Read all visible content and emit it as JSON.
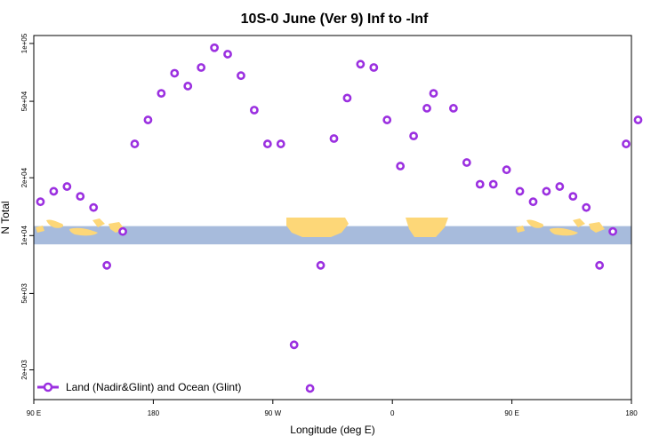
{
  "chart_data": {
    "type": "scatter",
    "title": "10S-0 June (Ver 9)   Inf to -Inf",
    "xlabel": "Longitude (deg E)",
    "ylabel": "N Total",
    "y_scale": "log",
    "ylim": [
      1400,
      110000
    ],
    "x_ticks": [
      {
        "label": "90 E",
        "pos": 0
      },
      {
        "label": "180",
        "pos": 90
      },
      {
        "label": "90 W",
        "pos": 180
      },
      {
        "label": "0",
        "pos": 270
      },
      {
        "label": "90 E",
        "pos": 360
      },
      {
        "label": "180",
        "pos": 450
      }
    ],
    "x_range": [
      0,
      450
    ],
    "y_ticks": [
      {
        "label": "1e+05",
        "value": 100000
      },
      {
        "label": "5e+04",
        "value": 50000
      },
      {
        "label": "2e+04",
        "value": 20000
      },
      {
        "label": "1e+04",
        "value": 10000
      },
      {
        "label": "5e+03",
        "value": 5000
      },
      {
        "label": "2e+03",
        "value": 2000
      }
    ],
    "map_band": {
      "value_low": 9000,
      "value_high": 11200,
      "ocean_color": "#a7bbdc",
      "land_color": "#fdd778"
    },
    "series": [
      {
        "name": "Land (Nadir&Glint) and Ocean (Glint)",
        "color": "#9b30e0",
        "x": [
          5,
          15,
          25,
          35,
          45,
          55,
          67,
          76,
          86,
          96,
          106,
          116,
          126,
          136,
          146,
          156,
          166,
          176,
          186,
          196,
          208,
          216,
          226,
          236,
          246,
          256,
          266,
          276,
          286,
          296,
          301,
          316,
          326,
          336,
          346,
          356,
          366,
          376,
          386,
          396,
          406,
          416,
          426,
          436,
          446,
          455
        ],
        "values": [
          15000,
          17000,
          18000,
          16000,
          14000,
          7000,
          10500,
          30000,
          40000,
          55000,
          70000,
          60000,
          75000,
          95000,
          88000,
          68000,
          45000,
          30000,
          30000,
          2700,
          1600,
          7000,
          32000,
          52000,
          78000,
          75000,
          40000,
          23000,
          33000,
          46000,
          55000,
          46000,
          24000,
          18500,
          18500,
          22000,
          17000,
          15000,
          17000,
          18000,
          16000,
          14000,
          7000,
          10500,
          30000,
          40000
        ]
      }
    ],
    "legend": {
      "position": "bottom-left",
      "label": "Land (Nadir&Glint) and Ocean (Glint)"
    }
  }
}
